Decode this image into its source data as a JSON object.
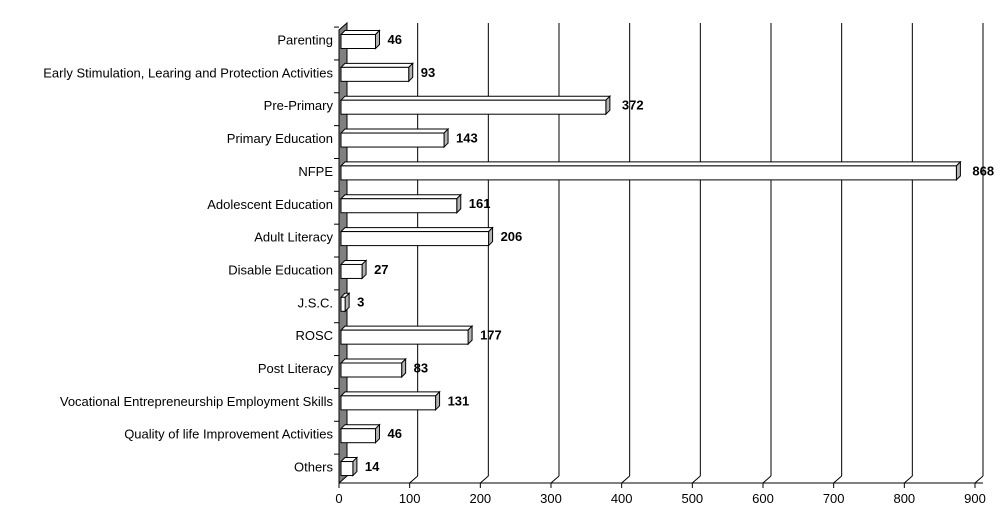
{
  "chart_data": {
    "type": "bar",
    "orientation": "horizontal",
    "style": "3d",
    "title": "",
    "xlabel": "",
    "ylabel": "",
    "categories": [
      "Parenting",
      "Early Stimulation, Learing and Protection Activities",
      "Pre-Primary",
      "Primary Education",
      "NFPE",
      "Adolescent Education",
      "Adult Literacy",
      "Disable Education",
      "J.S.C.",
      "ROSC",
      "Post Literacy",
      "Vocational Entrepreneurship Employment Skills",
      "Quality of life Improvement Activities",
      "Others"
    ],
    "values": [
      46,
      93,
      372,
      143,
      868,
      161,
      206,
      27,
      3,
      177,
      83,
      131,
      46,
      14
    ],
    "xlim": [
      0,
      900
    ],
    "xticks": [
      0,
      100,
      200,
      300,
      400,
      500,
      600,
      700,
      800,
      900
    ],
    "grid": "vertical",
    "legend": "none",
    "colors": {
      "bar_face": "#ffffff",
      "bar_side": "#b3b3b3",
      "bar_outline": "#000000",
      "wall": "#808080",
      "grid": "#000000"
    }
  }
}
